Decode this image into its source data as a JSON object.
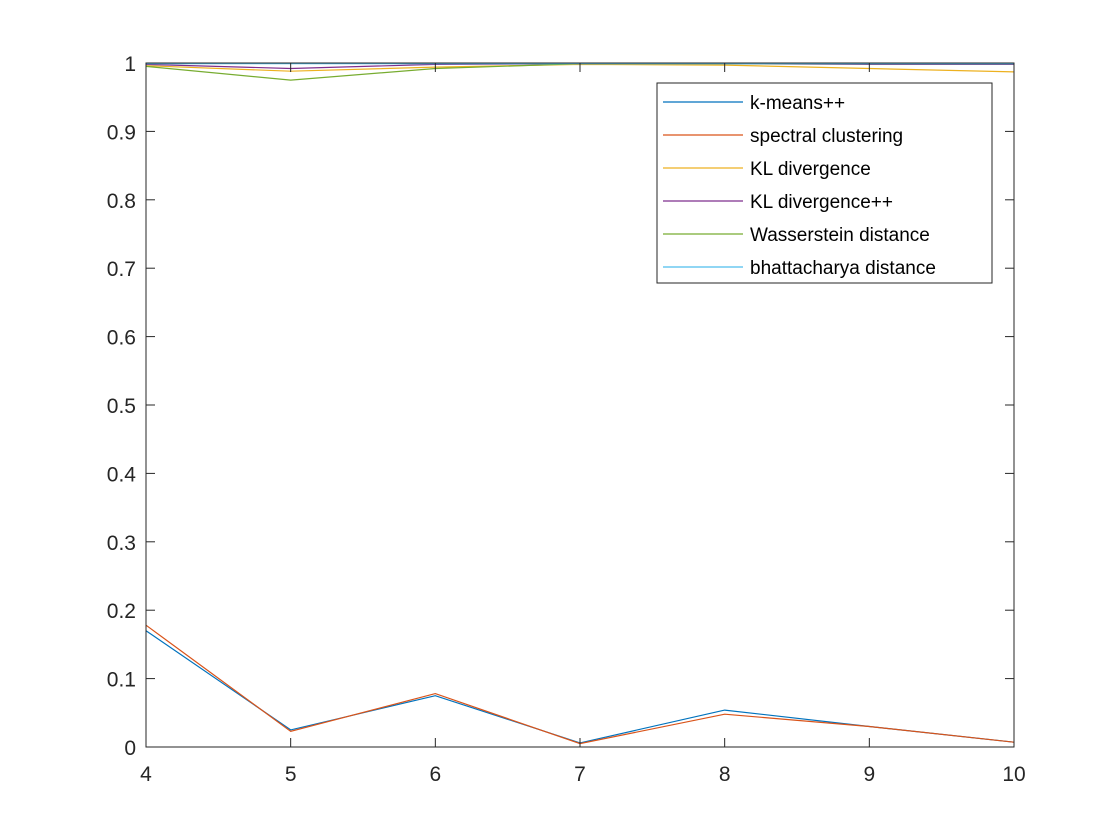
{
  "chart_data": {
    "type": "line",
    "title": "",
    "xlabel": "",
    "ylabel": "",
    "xlim": [
      4,
      10
    ],
    "ylim": [
      0,
      1
    ],
    "x_ticks": [
      4,
      5,
      6,
      7,
      8,
      9,
      10
    ],
    "y_ticks": [
      0,
      0.1,
      0.2,
      0.3,
      0.4,
      0.5,
      0.6,
      0.7,
      0.8,
      0.9,
      1
    ],
    "x_tick_labels": [
      "4",
      "5",
      "6",
      "7",
      "8",
      "9",
      "10"
    ],
    "y_tick_labels": [
      "0",
      "0.1",
      "0.2",
      "0.3",
      "0.4",
      "0.5",
      "0.6",
      "0.7",
      "0.8",
      "0.9",
      "1"
    ],
    "grid": false,
    "legend_position": "top-right",
    "x": [
      4,
      5,
      6,
      7,
      8,
      9,
      10
    ],
    "series": [
      {
        "name": "k-means++",
        "color": "#0072BD",
        "values": [
          0.17,
          0.025,
          0.075,
          0.006,
          0.054,
          0.03,
          0.007
        ]
      },
      {
        "name": "spectral clustering",
        "color": "#D95319",
        "values": [
          0.178,
          0.023,
          0.078,
          0.005,
          0.048,
          0.03,
          0.007
        ]
      },
      {
        "name": "KL divergence",
        "color": "#EDB120",
        "values": [
          0.996,
          0.988,
          0.994,
          0.998,
          0.997,
          0.992,
          0.987
        ]
      },
      {
        "name": "KL divergence++",
        "color": "#7E2F8E",
        "values": [
          0.998,
          0.992,
          0.998,
          0.999,
          0.999,
          0.998,
          0.998
        ]
      },
      {
        "name": "Wasserstein distance",
        "color": "#77AC30",
        "values": [
          0.995,
          0.975,
          0.992,
          0.999,
          0.999,
          0.999,
          0.999
        ]
      },
      {
        "name": "bhattacharya distance",
        "color": "#4DBEEE",
        "values": [
          0.999,
          0.999,
          0.999,
          0.999,
          0.999,
          0.999,
          0.999
        ]
      }
    ]
  }
}
